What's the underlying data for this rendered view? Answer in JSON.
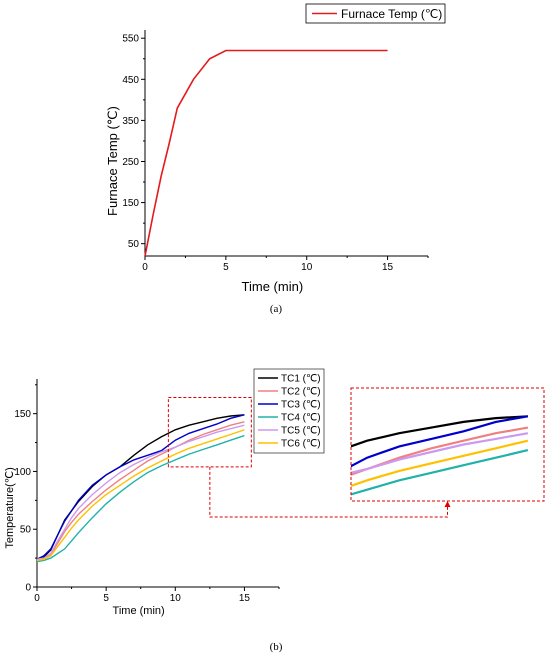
{
  "chart_data": [
    {
      "id": "a",
      "type": "line",
      "caption": "(a)",
      "xlabel": "Time (min)",
      "ylabel": "Furnace Temp (℃)",
      "xlim": [
        0,
        17.5
      ],
      "ylim": [
        20,
        570
      ],
      "xticks": [
        0,
        5,
        10,
        15
      ],
      "yticks": [
        50,
        150,
        250,
        350,
        450,
        550
      ],
      "grid": false,
      "legend_position": "top-right",
      "series": [
        {
          "name": "Furnace Temp (℃)",
          "color": "#e41a1c",
          "x": [
            0,
            0.5,
            1,
            1.5,
            2,
            3,
            4,
            5,
            6,
            8,
            10,
            12,
            15
          ],
          "y": [
            20,
            120,
            215,
            295,
            380,
            450,
            500,
            520,
            520,
            520,
            520,
            520,
            520
          ]
        }
      ]
    },
    {
      "id": "b",
      "type": "line",
      "caption": "(b)",
      "xlabel": "Time (min)",
      "ylabel": "Temperature(℃)",
      "xlim": [
        0,
        17.5
      ],
      "ylim": [
        0,
        180
      ],
      "xticks": [
        0,
        5,
        10,
        15
      ],
      "yticks": [
        0,
        50,
        100,
        150
      ],
      "grid": false,
      "legend_position": "top-right",
      "zoom_region": {
        "x": [
          9.5,
          15.5
        ],
        "y": [
          104,
          164
        ]
      },
      "series": [
        {
          "name": "TC1 (℃)",
          "color": "#000000",
          "x": [
            0,
            0.5,
            1,
            1.5,
            2,
            2.5,
            3,
            4,
            5,
            6,
            7,
            8,
            9,
            10,
            11,
            12,
            13,
            14,
            15
          ],
          "y": [
            24,
            26,
            32,
            45,
            58,
            66,
            74,
            87,
            97,
            104,
            114,
            123,
            130,
            136,
            140,
            143,
            146,
            148,
            149
          ]
        },
        {
          "name": "TC2 (℃)",
          "color": "#f08080",
          "x": [
            0,
            0.5,
            1,
            1.5,
            2,
            2.5,
            3,
            4,
            5,
            6,
            7,
            8,
            9,
            10,
            11,
            12,
            13,
            14,
            15
          ],
          "y": [
            23,
            24,
            28,
            38,
            48,
            56,
            63,
            74,
            84,
            93,
            101,
            109,
            115,
            121,
            127,
            132,
            136,
            140,
            143
          ]
        },
        {
          "name": "TC3 (℃)",
          "color": "#0000cd",
          "x": [
            0,
            0.5,
            1,
            1.5,
            2,
            2.5,
            3,
            4,
            5,
            6,
            7,
            8,
            9,
            10,
            11,
            12,
            13,
            14,
            15
          ],
          "y": [
            24,
            27,
            33,
            45,
            57,
            66,
            75,
            88,
            97,
            104,
            110,
            114,
            118,
            127,
            133,
            137,
            141,
            146,
            149
          ]
        },
        {
          "name": "TC4 (℃)",
          "color": "#20b2aa",
          "x": [
            0,
            0.5,
            1,
            1.5,
            2,
            2.5,
            3,
            4,
            5,
            6,
            7,
            8,
            9,
            10,
            11,
            12,
            13,
            14,
            15
          ],
          "y": [
            22,
            23,
            25,
            29,
            33,
            40,
            47,
            60,
            72,
            82,
            91,
            99,
            105,
            110,
            115,
            119,
            123,
            127,
            131
          ]
        },
        {
          "name": "TC5 (℃)",
          "color": "#cc99ee",
          "x": [
            0,
            0.5,
            1,
            1.5,
            2,
            2.5,
            3,
            4,
            5,
            6,
            7,
            8,
            9,
            10,
            11,
            12,
            13,
            14,
            15
          ],
          "y": [
            24,
            25,
            29,
            40,
            50,
            60,
            68,
            80,
            90,
            99,
            106,
            112,
            117,
            121,
            126,
            130,
            134,
            137,
            140
          ]
        },
        {
          "name": "TC6 (℃)",
          "color": "#ffc000",
          "x": [
            0,
            0.5,
            1,
            1.5,
            2,
            2.5,
            3,
            4,
            5,
            6,
            7,
            8,
            9,
            10,
            11,
            12,
            13,
            14,
            15
          ],
          "y": [
            23,
            24,
            27,
            35,
            43,
            51,
            58,
            70,
            80,
            88,
            96,
            103,
            109,
            115,
            120,
            124,
            128,
            132,
            136
          ]
        }
      ]
    }
  ]
}
